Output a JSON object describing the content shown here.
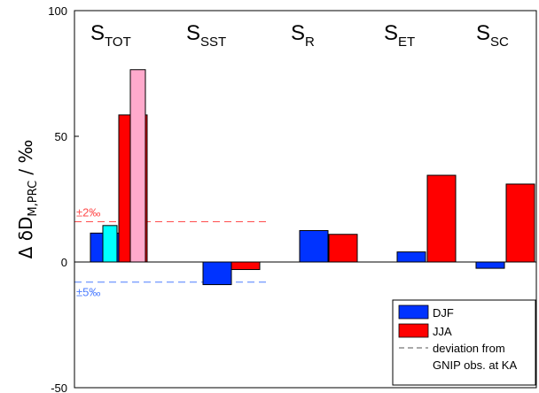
{
  "chart_data": {
    "type": "bar",
    "ylabel": {
      "prefix": "Δ δD",
      "sub": "M,PRC",
      "suffix": " / ‰"
    },
    "ylim": [
      -50,
      100
    ],
    "yticks": [
      "-50",
      "0",
      "50",
      "100"
    ],
    "groups": [
      {
        "main": "S",
        "sub": "TOT"
      },
      {
        "main": "S",
        "sub": "SST"
      },
      {
        "main": "S",
        "sub": "R"
      },
      {
        "main": "S",
        "sub": "ET"
      },
      {
        "main": "S",
        "sub": "SC"
      }
    ],
    "series": [
      {
        "name": "DJF",
        "color": "#0033ff",
        "values": [
          11.5,
          -9,
          12.5,
          4,
          -2.5
        ]
      },
      {
        "name": "JJA",
        "color": "#ff0000",
        "values": [
          58.5,
          -3,
          11,
          34.5,
          31
        ]
      }
    ],
    "extra_bars": [
      {
        "group": 0,
        "color": "#00ffff",
        "value": 14.5
      },
      {
        "group": 0,
        "color": "#ffaacc",
        "value": 76.5
      }
    ],
    "reference_lines": [
      {
        "value": 16,
        "color": "#ff4d4d",
        "label": "±2‰"
      },
      {
        "value": -8,
        "color": "#4d7dff",
        "label": "±5‰"
      }
    ],
    "legend": {
      "position": "bottom-right",
      "items": [
        "DJF",
        "JJA"
      ],
      "dashed_label_lines": [
        "deviation from",
        "GNIP obs. at KA"
      ]
    },
    "grid": false
  }
}
